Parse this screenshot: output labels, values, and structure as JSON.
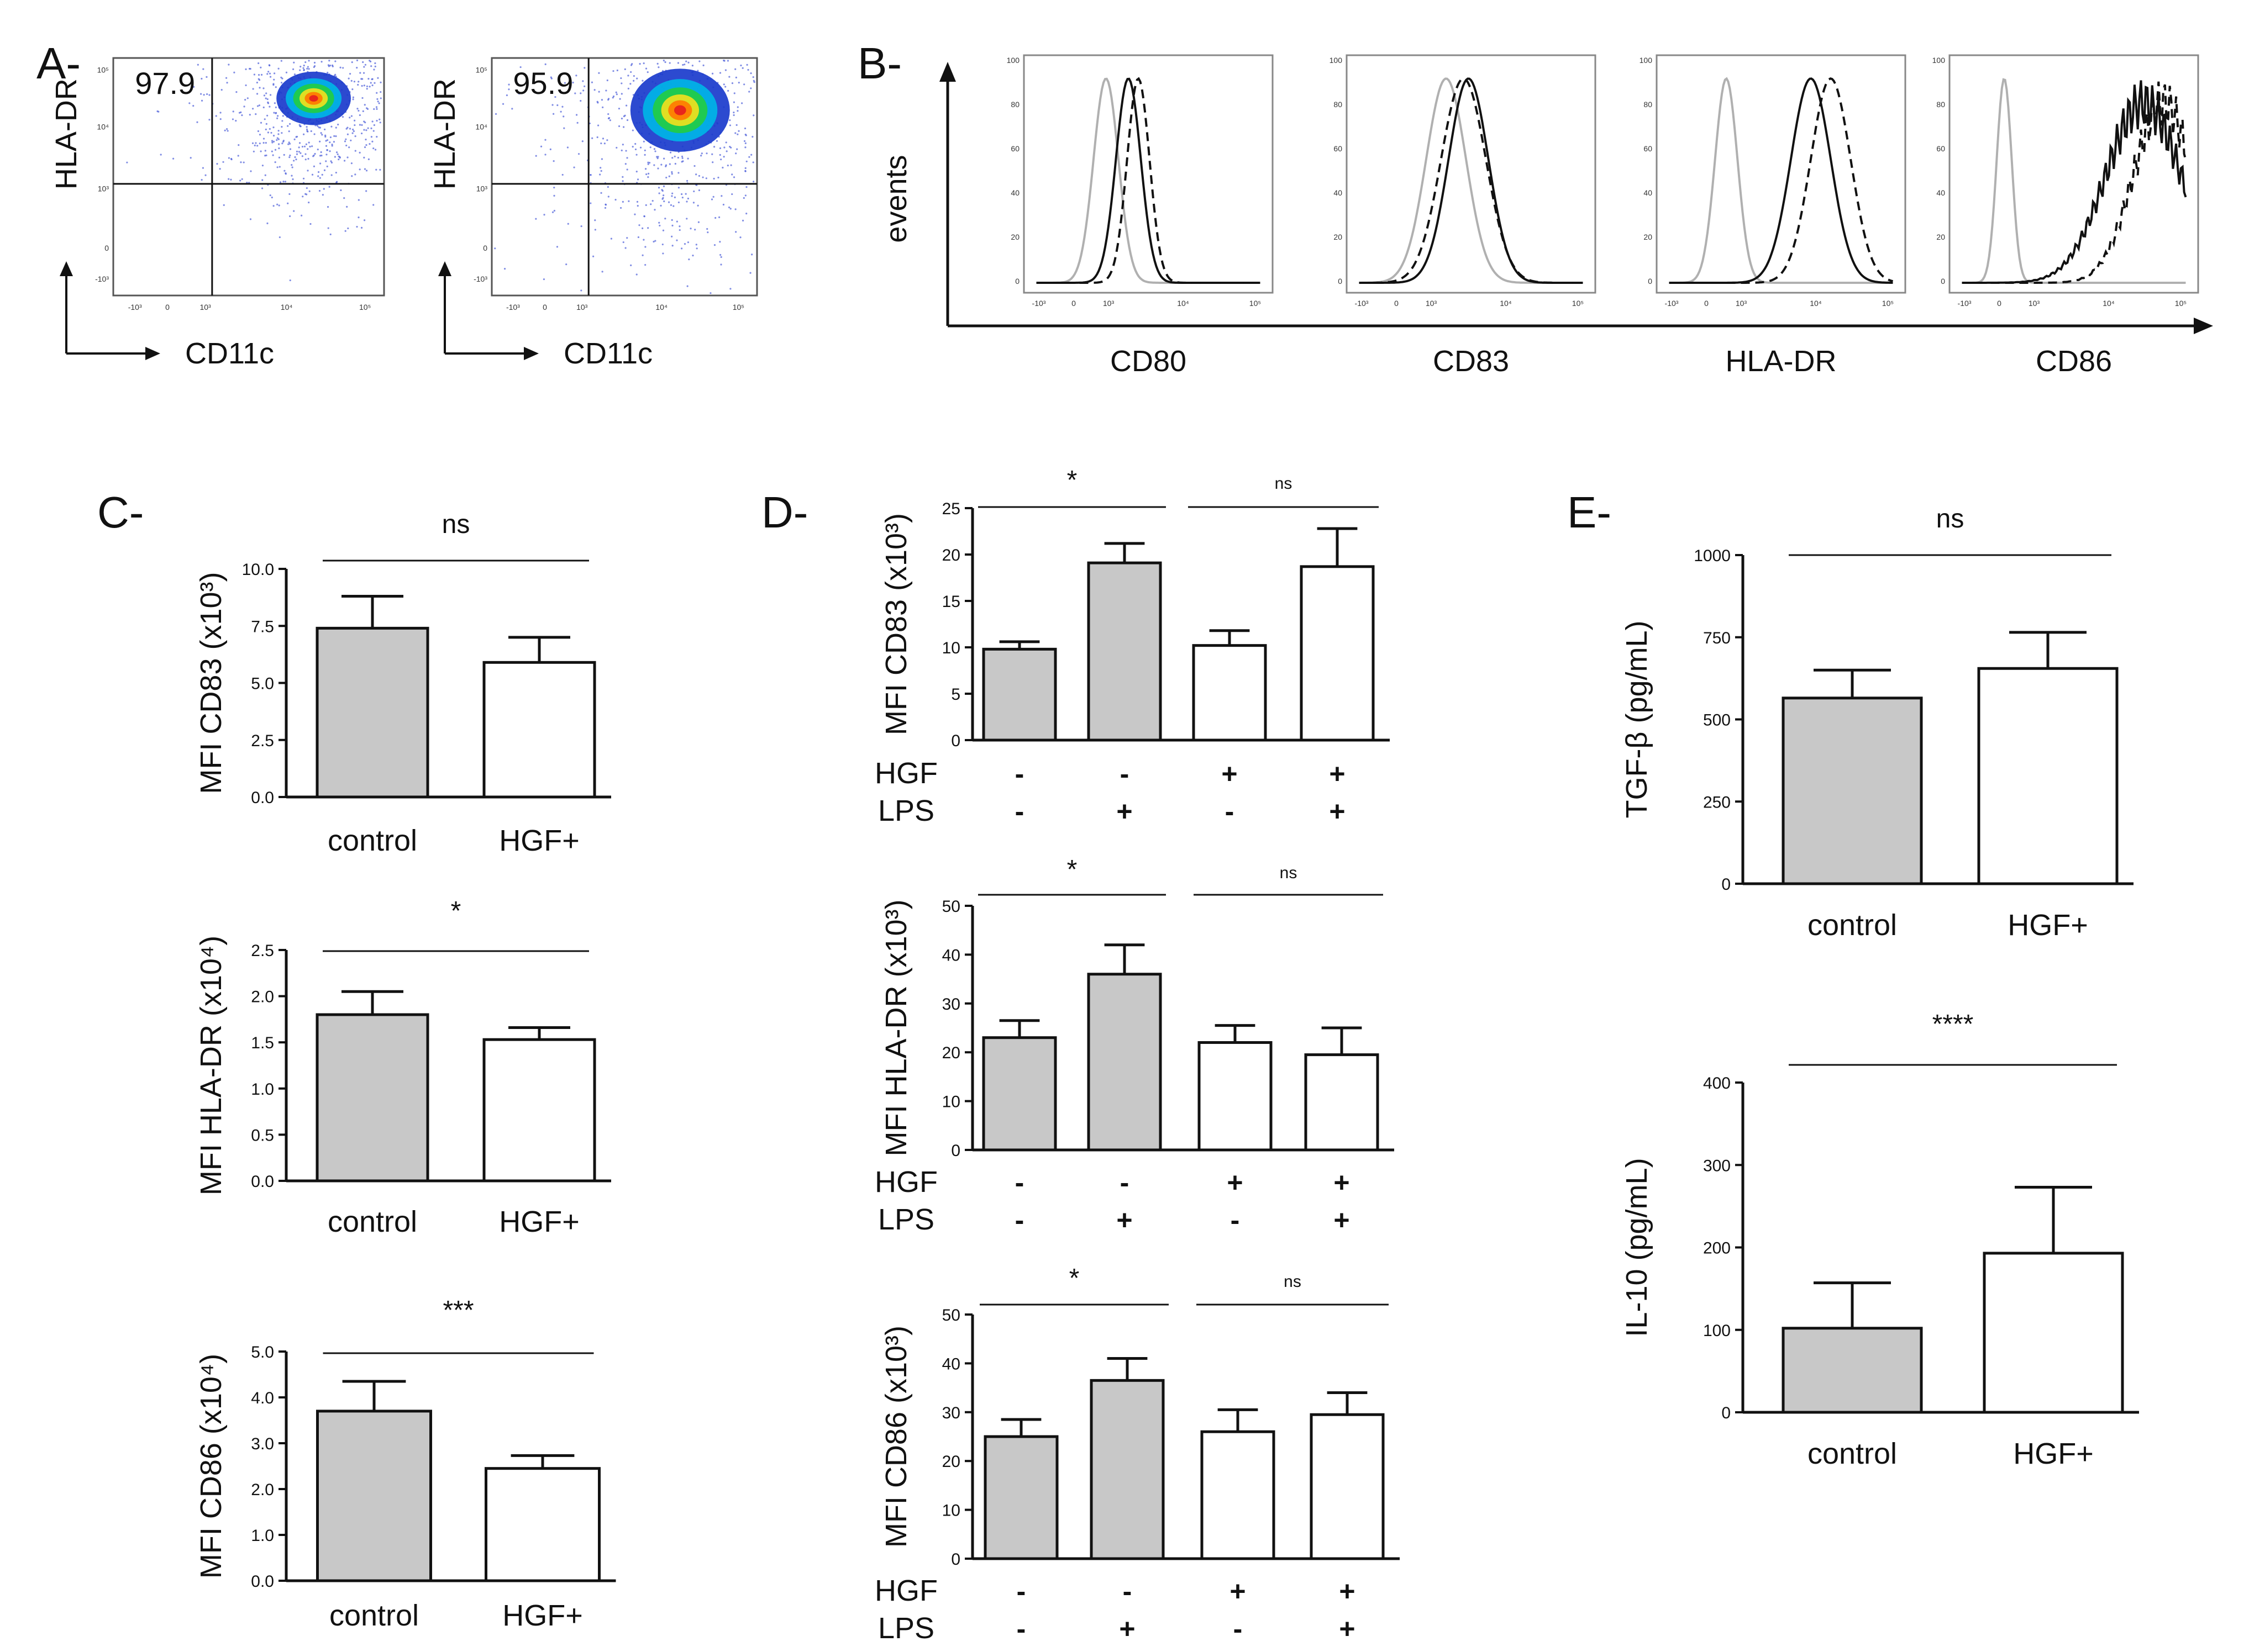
{
  "colors": {
    "gray_bar": "#c8c8c8",
    "white_bar": "#ffffff",
    "axis": "#111111",
    "isotype": "#b0b0b0",
    "density": [
      "#1a3bcc",
      "#00b4e6",
      "#22cc44",
      "#f0e020",
      "#ff7a00",
      "#e61e1e"
    ]
  },
  "panelA": {
    "letter": "A-",
    "plots": [
      {
        "gate_value": "97.9",
        "y_label": "HLA-DR",
        "x_label": "CD11c"
      },
      {
        "gate_value": "95.9",
        "y_label": "HLA-DR",
        "x_label": "CD11c"
      }
    ],
    "y_ticks": [
      "10⁵",
      "10⁴",
      "10³",
      "0",
      "-10³"
    ],
    "x_ticks": [
      "-10³",
      "0",
      "10³",
      "10⁴",
      "10⁵"
    ]
  },
  "panelB": {
    "letter": "B-",
    "y_label": "events",
    "y_ticks": [
      "100",
      "80",
      "60",
      "40",
      "20",
      "0"
    ],
    "x_ticks": [
      "-10³",
      "0",
      "10³",
      "10⁴",
      "10⁵"
    ],
    "histograms": [
      {
        "marker": "CD80"
      },
      {
        "marker": "CD83"
      },
      {
        "marker": "HLA-DR"
      },
      {
        "marker": "CD86"
      }
    ]
  },
  "chart_data": [
    {
      "id": "C1",
      "type": "bar",
      "panel": "C-",
      "ylabel": "MFI CD83 (x10³)",
      "ylim": [
        0,
        10
      ],
      "y_ticks": [
        "10.0",
        "7.5",
        "5.0",
        "2.5",
        "0.0"
      ],
      "categories": [
        "control",
        "HGF+"
      ],
      "values": [
        7.4,
        5.9
      ],
      "errors": [
        1.4,
        1.1
      ],
      "significance": "ns"
    },
    {
      "id": "C2",
      "type": "bar",
      "ylabel": "MFI HLA-DR (x10⁴)",
      "ylim": [
        0,
        2.5
      ],
      "y_ticks": [
        "2.5",
        "2.0",
        "1.5",
        "1.0",
        "0.5",
        "0.0"
      ],
      "categories": [
        "control",
        "HGF+"
      ],
      "values": [
        1.8,
        1.53
      ],
      "errors": [
        0.25,
        0.13
      ],
      "significance": "*"
    },
    {
      "id": "C3",
      "type": "bar",
      "ylabel": "MFI CD86 (x10⁴)",
      "ylim": [
        0,
        5
      ],
      "y_ticks": [
        "5.0",
        "4.0",
        "3.0",
        "2.0",
        "1.0",
        "0.0"
      ],
      "categories": [
        "control",
        "HGF+"
      ],
      "values": [
        3.7,
        2.45
      ],
      "errors": [
        0.65,
        0.28
      ],
      "significance": "***"
    },
    {
      "id": "D1",
      "type": "bar",
      "panel": "D-",
      "ylabel": "MFI CD83 (x10³)",
      "ylim": [
        0,
        25
      ],
      "y_ticks": [
        "25",
        "20",
        "15",
        "10",
        "5",
        "0"
      ],
      "row_labels": [
        "HGF",
        "LPS"
      ],
      "conditions": [
        [
          "-",
          "-"
        ],
        [
          "-",
          "+"
        ],
        [
          "+",
          "-"
        ],
        [
          "+",
          "+"
        ]
      ],
      "values": [
        9.8,
        19.1,
        10.2,
        18.7
      ],
      "errors": [
        0.8,
        2.1,
        1.6,
        4.1
      ],
      "significance": [
        "*",
        "ns"
      ]
    },
    {
      "id": "D2",
      "type": "bar",
      "ylabel": "MFI HLA-DR (x10³)",
      "ylim": [
        0,
        50
      ],
      "y_ticks": [
        "50",
        "40",
        "30",
        "20",
        "10",
        "0"
      ],
      "row_labels": [
        "HGF",
        "LPS"
      ],
      "conditions": [
        [
          "-",
          "-"
        ],
        [
          "-",
          "+"
        ],
        [
          "+",
          "-"
        ],
        [
          "+",
          "+"
        ]
      ],
      "values": [
        23,
        36,
        22,
        19.5
      ],
      "errors": [
        3.5,
        6,
        3.5,
        5.5
      ],
      "significance": [
        "*",
        "ns"
      ]
    },
    {
      "id": "D3",
      "type": "bar",
      "ylabel": "MFI CD86 (x10³)",
      "ylim": [
        0,
        50
      ],
      "y_ticks": [
        "50",
        "40",
        "30",
        "20",
        "10",
        "0"
      ],
      "row_labels": [
        "HGF",
        "LPS"
      ],
      "conditions": [
        [
          "-",
          "-"
        ],
        [
          "-",
          "+"
        ],
        [
          "+",
          "-"
        ],
        [
          "+",
          "+"
        ]
      ],
      "values": [
        25,
        36.5,
        26,
        29.5
      ],
      "errors": [
        3.5,
        4.5,
        4.5,
        4.5
      ],
      "significance": [
        "*",
        "ns"
      ]
    },
    {
      "id": "E1",
      "type": "bar",
      "panel": "E-",
      "ylabel": "TGF-β (pg/mL)",
      "ylim": [
        0,
        1000
      ],
      "y_ticks": [
        "1000",
        "750",
        "500",
        "250",
        "0"
      ],
      "categories": [
        "control",
        "HGF+"
      ],
      "values": [
        565,
        655
      ],
      "errors": [
        85,
        110
      ],
      "significance": "ns"
    },
    {
      "id": "E2",
      "type": "bar",
      "ylabel": "IL-10 (pg/mL)",
      "ylim": [
        0,
        400
      ],
      "y_ticks": [
        "400",
        "300",
        "200",
        "100",
        "0"
      ],
      "categories": [
        "control",
        "HGF+"
      ],
      "values": [
        102,
        193
      ],
      "errors": [
        55,
        80
      ],
      "significance": "****"
    }
  ]
}
